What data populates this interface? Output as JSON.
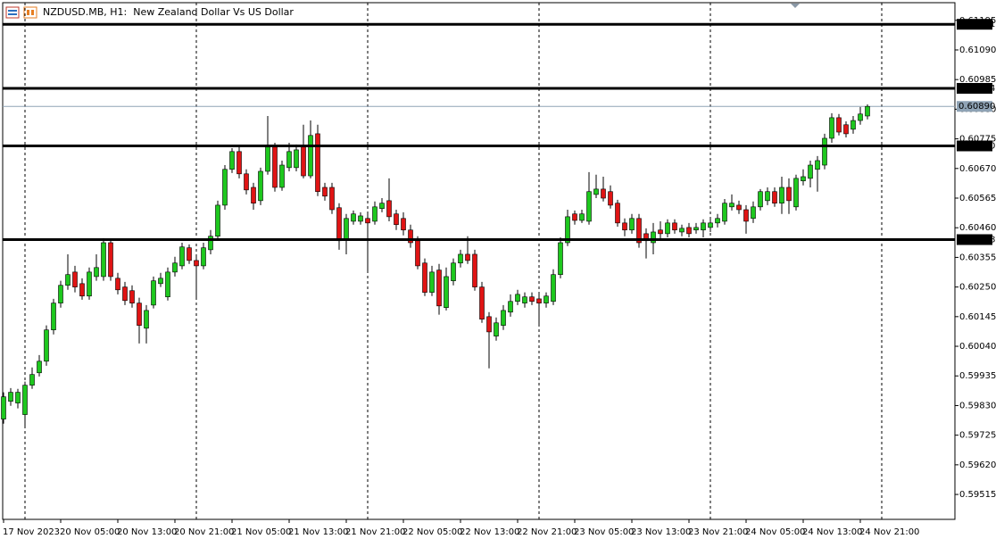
{
  "chart_data": {
    "type": "candlestick",
    "title": "NZDUSD.MB, H1:  New Zealand Dollar Vs US Dollar",
    "categories": [
      "17 Nov 2023",
      null,
      null,
      null,
      null,
      null,
      null,
      null,
      "20 Nov 05:00",
      null,
      null,
      null,
      null,
      null,
      null,
      null,
      "20 Nov 13:00",
      null,
      null,
      null,
      null,
      null,
      null,
      null,
      "20 Nov 21:00",
      null,
      null,
      null,
      null,
      null,
      null,
      null,
      "21 Nov 05:00",
      null,
      null,
      null,
      null,
      null,
      null,
      null,
      "21 Nov 13:00",
      null,
      null,
      null,
      null,
      null,
      null,
      null,
      "21 Nov 21:00",
      null,
      null,
      null,
      null,
      null,
      null,
      null,
      "22 Nov 05:00",
      null,
      null,
      null,
      null,
      null,
      null,
      null,
      "22 Nov 13:00",
      null,
      null,
      null,
      null,
      null,
      null,
      null,
      "22 Nov 21:00",
      null,
      null,
      null,
      null,
      null,
      null,
      null,
      "23 Nov 05:00",
      null,
      null,
      null,
      null,
      null,
      null,
      null,
      "23 Nov 13:00",
      null,
      null,
      null,
      null,
      null,
      null,
      null,
      "23 Nov 21:00",
      null,
      null,
      null,
      null,
      null,
      null,
      null,
      "24 Nov 05:00",
      null,
      null,
      null,
      null,
      null,
      null,
      null,
      "24 Nov 13:00",
      null,
      null,
      null,
      null,
      null,
      null,
      null,
      "24 Nov 21:00",
      null
    ],
    "open": [
      0.59782,
      0.59845,
      0.59839,
      0.59798,
      0.59902,
      0.59946,
      0.59987,
      0.60098,
      0.60193,
      0.60256,
      0.60303,
      0.60262,
      0.60218,
      0.60287,
      0.60287,
      0.60407,
      0.60281,
      0.6025,
      0.60237,
      0.60193,
      0.60104,
      0.60186,
      0.60262,
      0.60215,
      0.60303,
      0.60325,
      0.60389,
      0.60344,
      0.60325,
      0.60382,
      0.6043,
      0.6054,
      0.60667,
      0.6073,
      0.60651,
      0.60603,
      0.60556,
      0.6066,
      0.60746,
      0.60603,
      0.60673,
      0.60673,
      0.60746,
      0.60644,
      0.60793,
      0.60603,
      0.60603,
      0.60531,
      0.6042,
      0.60483,
      0.60483,
      0.60493,
      0.60483,
      0.60528,
      0.60556,
      0.60509,
      0.60493,
      0.60452,
      0.60414,
      0.60335,
      0.60231,
      0.6031,
      0.60177,
      0.60272,
      0.60335,
      0.60366,
      0.60366,
      0.6025,
      0.60145,
      0.60076,
      0.60114,
      0.60161,
      0.60199,
      0.60193,
      0.60215,
      0.60208,
      0.60193,
      0.60199,
      0.60294,
      0.60407,
      0.60509,
      0.60486,
      0.60483,
      0.60578,
      0.60597,
      0.60588,
      0.60547,
      0.60477,
      0.60452,
      0.60493,
      0.60439,
      0.60407,
      0.60452,
      0.60439,
      0.60477,
      0.60445,
      0.60461,
      0.60452,
      0.60452,
      0.60461,
      0.60477,
      0.60483,
      0.60534,
      0.6054,
      0.60524,
      0.60493,
      0.60534,
      0.60556,
      0.60588,
      0.60547,
      0.60603,
      0.60534,
      0.60626,
      0.60635,
      0.60667,
      0.60682,
      0.60777,
      0.6085,
      0.60825,
      0.60809,
      0.6084,
      0.60856
    ],
    "high": [
      0.59877,
      0.59892,
      0.59889,
      0.59915,
      0.59965,
      0.60009,
      0.60114,
      0.60208,
      0.60272,
      0.60366,
      0.60325,
      0.60281,
      0.60319,
      0.60366,
      0.60423,
      0.6042,
      0.603,
      0.60268,
      0.60256,
      0.60212,
      0.60186,
      0.60287,
      0.603,
      0.60319,
      0.60357,
      0.60407,
      0.60401,
      0.60363,
      0.60407,
      0.60452,
      0.60556,
      0.60682,
      0.60742,
      0.60746,
      0.60667,
      0.60619,
      0.60673,
      0.60856,
      0.60761,
      0.60698,
      0.60761,
      0.60755,
      0.60825,
      0.6084,
      0.60825,
      0.60619,
      0.60619,
      0.60547,
      0.60509,
      0.60521,
      0.60515,
      0.60509,
      0.60553,
      0.60565,
      0.60635,
      0.60524,
      0.60515,
      0.60471,
      0.6043,
      0.60351,
      0.60325,
      0.60332,
      0.60319,
      0.60351,
      0.60382,
      0.6043,
      0.60382,
      0.60268,
      0.60161,
      0.60142,
      0.60186,
      0.60224,
      0.6024,
      0.60231,
      0.60231,
      0.60224,
      0.60231,
      0.60313,
      0.60426,
      0.60524,
      0.60521,
      0.60524,
      0.60657,
      0.60648,
      0.60641,
      0.6061,
      0.60559,
      0.60493,
      0.60509,
      0.60509,
      0.60458,
      0.60477,
      0.60483,
      0.6049,
      0.6049,
      0.60471,
      0.60477,
      0.60477,
      0.6049,
      0.60493,
      0.60509,
      0.60562,
      0.60578,
      0.60556,
      0.6054,
      0.60553,
      0.60597,
      0.60603,
      0.60603,
      0.60641,
      0.60635,
      0.60648,
      0.60667,
      0.60698,
      0.60714,
      0.60793,
      0.60866,
      0.60863,
      0.60837,
      0.60856,
      0.60888,
      0.60897
    ],
    "low": [
      0.59766,
      0.59829,
      0.5982,
      0.59757,
      0.59889,
      0.59933,
      0.59971,
      0.60082,
      0.60177,
      0.6024,
      0.60231,
      0.60205,
      0.60205,
      0.60272,
      0.60272,
      0.60272,
      0.60224,
      0.60186,
      0.60177,
      0.6005,
      0.6005,
      0.60174,
      0.6025,
      0.60202,
      0.60287,
      0.60313,
      0.60332,
      0.60208,
      0.60313,
      0.60366,
      0.60414,
      0.60524,
      0.60654,
      0.60635,
      0.60578,
      0.60524,
      0.6054,
      0.60648,
      0.60588,
      0.60591,
      0.6066,
      0.6066,
      0.60635,
      0.60635,
      0.60572,
      0.60556,
      0.60509,
      0.60382,
      0.60366,
      0.60471,
      0.60471,
      0.60303,
      0.60471,
      0.60515,
      0.60483,
      0.60452,
      0.60433,
      0.60389,
      0.60313,
      0.60218,
      0.60218,
      0.60152,
      0.60167,
      0.60256,
      0.60319,
      0.60332,
      0.60237,
      0.60123,
      0.59962,
      0.6006,
      0.60098,
      0.60145,
      0.60186,
      0.60177,
      0.60186,
      0.60114,
      0.60177,
      0.60186,
      0.60281,
      0.60395,
      0.60471,
      0.60477,
      0.60471,
      0.60565,
      0.60553,
      0.60528,
      0.60464,
      0.6043,
      0.60439,
      0.60389,
      0.60351,
      0.60366,
      0.6042,
      0.60426,
      0.60439,
      0.6043,
      0.60426,
      0.60439,
      0.60426,
      0.60445,
      0.60461,
      0.60471,
      0.60521,
      0.60509,
      0.60439,
      0.60477,
      0.60521,
      0.6054,
      0.60534,
      0.60509,
      0.60509,
      0.60521,
      0.6061,
      0.60603,
      0.60588,
      0.60667,
      0.60761,
      0.60787,
      0.6078,
      0.60793,
      0.60825,
      0.60844
    ],
    "close": [
      0.59861,
      0.59877,
      0.59877,
      0.59902,
      0.5994,
      0.59987,
      0.60098,
      0.60193,
      0.60256,
      0.60294,
      0.6025,
      0.60218,
      0.60303,
      0.60319,
      0.60407,
      0.60287,
      0.6024,
      0.60202,
      0.60193,
      0.60114,
      0.60167,
      0.60272,
      0.60281,
      0.60303,
      0.60335,
      0.60392,
      0.60344,
      0.60325,
      0.60389,
      0.6043,
      0.6054,
      0.60667,
      0.6073,
      0.60651,
      0.60594,
      0.60547,
      0.6066,
      0.60746,
      0.60603,
      0.60682,
      0.6073,
      0.60736,
      0.60644,
      0.60787,
      0.60588,
      0.60572,
      0.60524,
      0.60414,
      0.60493,
      0.60509,
      0.60502,
      0.60477,
      0.60534,
      0.60547,
      0.60499,
      0.60471,
      0.60452,
      0.60407,
      0.60325,
      0.60231,
      0.60303,
      0.60183,
      0.60287,
      0.60335,
      0.60366,
      0.60344,
      0.6025,
      0.60136,
      0.60091,
      0.60123,
      0.60167,
      0.60199,
      0.60224,
      0.60215,
      0.60199,
      0.60193,
      0.60218,
      0.60294,
      0.60407,
      0.60499,
      0.60486,
      0.60509,
      0.60588,
      0.60597,
      0.60565,
      0.6054,
      0.60477,
      0.60452,
      0.60493,
      0.60407,
      0.60414,
      0.60445,
      0.60439,
      0.60477,
      0.60452,
      0.60458,
      0.60439,
      0.60461,
      0.60477,
      0.60477,
      0.60493,
      0.60547,
      0.60547,
      0.60524,
      0.60483,
      0.60534,
      0.60588,
      0.60588,
      0.60547,
      0.60603,
      0.60556,
      0.60635,
      0.60641,
      0.60682,
      0.60698,
      0.60777,
      0.6085,
      0.60799,
      0.60793,
      0.6084,
      0.60863,
      0.6089
    ],
    "up_color": "#1ec81e",
    "down_color": "#e01414",
    "wick_color": "#000000",
    "ylim": [
      0.59433,
      0.61267
    ],
    "yticks": [
      0.61195,
      {
        "value": 0.6109,
        "label": "0.61090"
      },
      0.60985,
      {
        "value": 0.6088,
        "label": "0.60880"
      },
      0.60775,
      {
        "value": 0.6067,
        "label": "0.60670"
      },
      0.60565,
      {
        "value": 0.6046,
        "label": "0.60460"
      },
      0.60355,
      {
        "value": 0.6025,
        "label": "0.60250"
      },
      0.60145,
      {
        "value": 0.6004,
        "label": "0.60040"
      },
      0.59935,
      {
        "value": 0.5983,
        "label": "0.59830"
      },
      0.59725,
      {
        "value": 0.5962,
        "label": "0.59620"
      },
      0.59515
    ],
    "hlines": [
      {
        "value": 0.61181,
        "label": "0.61181"
      },
      {
        "value": 0.60954,
        "label": "0.60954"
      },
      {
        "value": 0.6075,
        "label": "0.60750"
      },
      {
        "value": 0.60418,
        "label": "0.60418"
      }
    ],
    "hline_color": "#000000",
    "bid": {
      "value": 0.6089,
      "label": "0.60890"
    },
    "bid_color": "#8fa3b5",
    "grid": true
  }
}
